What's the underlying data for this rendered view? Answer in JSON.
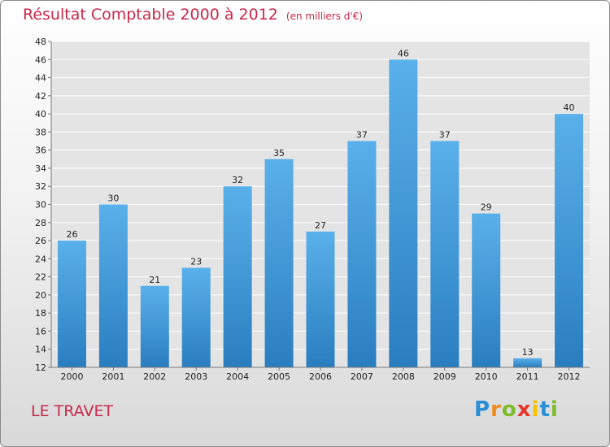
{
  "header": {
    "title": "Résultat Comptable 2000 à 2012",
    "subtitle": "(en milliers d'€)"
  },
  "footer": {
    "commune": "LE TRAVET",
    "logo_letters": [
      "P",
      "r",
      "o",
      "x",
      "i",
      "t",
      "i"
    ],
    "logo_colors": [
      "#2a8ed6",
      "#f08a1c",
      "#7dbb2a",
      "#e8362c",
      "#f5c400",
      "#2a8ed6",
      "#7dbb2a"
    ]
  },
  "colors": {
    "bar_light": "#5ab0ea",
    "bar_dark": "#2a7ec0",
    "grid": "#ffffff",
    "title": "#c8284a"
  },
  "chart_data": {
    "type": "bar",
    "title": "Résultat Comptable 2000 à 2012",
    "unit": "(en milliers d'€)",
    "xlabel": "",
    "ylabel": "",
    "categories": [
      "2000",
      "2001",
      "2002",
      "2003",
      "2004",
      "2005",
      "2006",
      "2007",
      "2008",
      "2009",
      "2010",
      "2011",
      "2012"
    ],
    "values": [
      26,
      30,
      21,
      23,
      32,
      35,
      27,
      37,
      46,
      37,
      29,
      13,
      40
    ],
    "ylim": [
      12,
      48
    ],
    "yticks": [
      12,
      14,
      16,
      18,
      20,
      22,
      24,
      26,
      28,
      30,
      32,
      34,
      36,
      38,
      40,
      42,
      44,
      46,
      48
    ],
    "grid": true,
    "legend": "none"
  }
}
